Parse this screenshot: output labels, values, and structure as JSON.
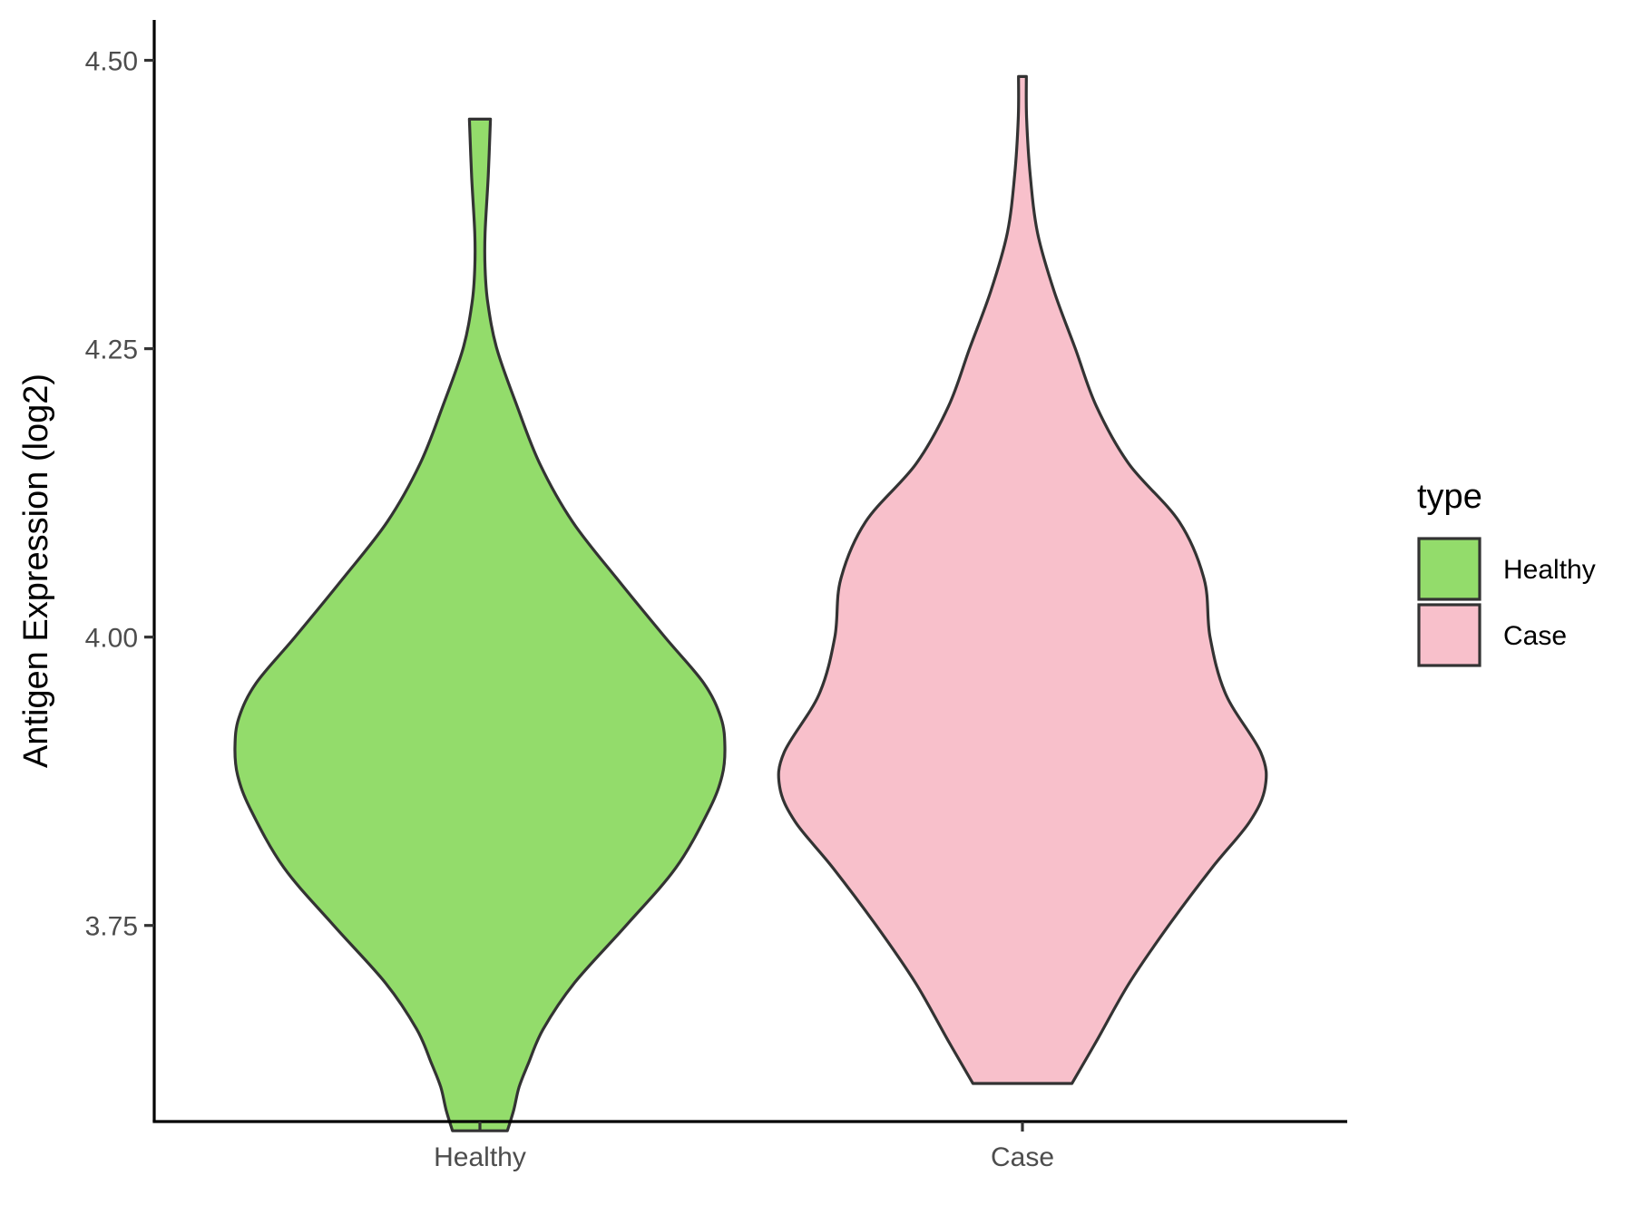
{
  "chart_data": {
    "type": "violin",
    "title": "",
    "xlabel": "",
    "ylabel": "Antigen Expression (log2)",
    "ylim": [
      3.58,
      4.535
    ],
    "yticks": [
      "3.75",
      "4.00",
      "4.25",
      "4.50"
    ],
    "grid": false,
    "categories": [
      "Healthy",
      "Case"
    ],
    "legend": {
      "title": "type",
      "position": "right",
      "entries": [
        "Healthy",
        "Case"
      ]
    },
    "series": [
      {
        "name": "Healthy",
        "color": "#93dc6b",
        "min": 3.572,
        "max": 4.449,
        "density_profile": [
          [
            3.572,
            0.112
          ],
          [
            3.59,
            0.138
          ],
          [
            3.61,
            0.16
          ],
          [
            3.63,
            0.197
          ],
          [
            3.66,
            0.258
          ],
          [
            3.7,
            0.385
          ],
          [
            3.75,
            0.597
          ],
          [
            3.8,
            0.8
          ],
          [
            3.85,
            0.935
          ],
          [
            3.88,
            0.989
          ],
          [
            3.905,
            1.0
          ],
          [
            3.93,
            0.984
          ],
          [
            3.96,
            0.914
          ],
          [
            4.0,
            0.755
          ],
          [
            4.05,
            0.562
          ],
          [
            4.1,
            0.378
          ],
          [
            4.15,
            0.245
          ],
          [
            4.2,
            0.152
          ],
          [
            4.25,
            0.069
          ],
          [
            4.29,
            0.032
          ],
          [
            4.32,
            0.021
          ],
          [
            4.35,
            0.021
          ],
          [
            4.4,
            0.034
          ],
          [
            4.449,
            0.043
          ]
        ]
      },
      {
        "name": "Case",
        "color": "#f8c0cb",
        "min": 3.613,
        "max": 4.486,
        "density_profile": [
          [
            3.613,
            0.202
          ],
          [
            3.65,
            0.303
          ],
          [
            3.7,
            0.436
          ],
          [
            3.75,
            0.597
          ],
          [
            3.8,
            0.774
          ],
          [
            3.84,
            0.928
          ],
          [
            3.87,
            0.991
          ],
          [
            3.9,
            0.973
          ],
          [
            3.95,
            0.831
          ],
          [
            4.0,
            0.766
          ],
          [
            4.05,
            0.742
          ],
          [
            4.1,
            0.64
          ],
          [
            4.15,
            0.435
          ],
          [
            4.2,
            0.302
          ],
          [
            4.25,
            0.216
          ],
          [
            4.3,
            0.129
          ],
          [
            4.35,
            0.062
          ],
          [
            4.4,
            0.032
          ],
          [
            4.45,
            0.017
          ],
          [
            4.486,
            0.016
          ]
        ]
      }
    ]
  }
}
